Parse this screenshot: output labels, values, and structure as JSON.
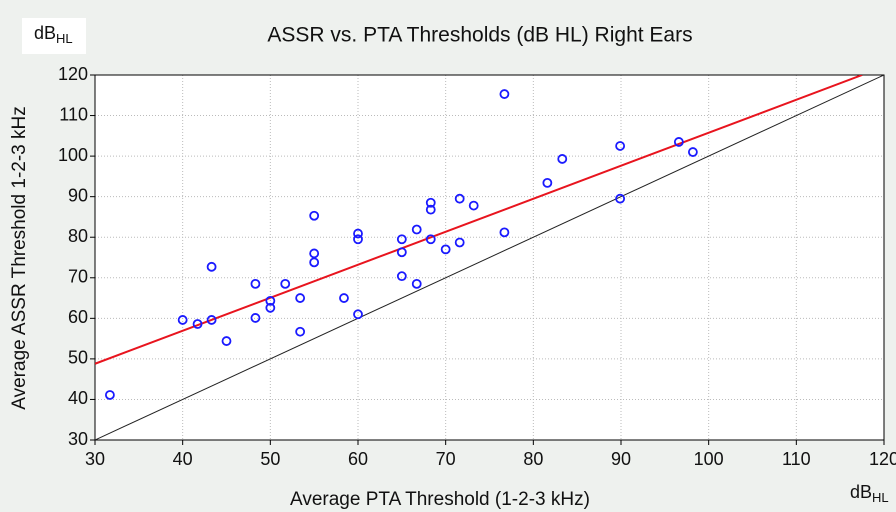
{
  "chart_data": {
    "type": "scatter",
    "title": "ASSR vs. PTA Thresholds (dB HL) Right Ears",
    "x_label": "Average PTA Threshold (1-2-3 kHz)",
    "y_label": "Average ASSR Threshold 1-2-3 kHz",
    "y_unit": {
      "base": "dB",
      "sub": "HL"
    },
    "x_unit": {
      "base": "dB",
      "sub": "HL"
    },
    "color": "#1a1aff",
    "x": [
      31.7,
      40,
      41.7,
      43.3,
      43.3,
      45,
      48.3,
      48.3,
      50,
      50,
      51.7,
      53.4,
      53.4,
      55,
      55,
      55,
      58.4,
      60,
      60,
      60,
      65,
      65,
      65,
      66.7,
      66.7,
      68.3,
      68.3,
      68.3,
      70,
      71.6,
      71.6,
      73.2,
      76.7,
      76.7,
      81.6,
      83.3,
      89.9,
      89.9,
      96.6,
      98.2
    ],
    "values": [
      41.1,
      59.6,
      58.6,
      59.6,
      72.7,
      54.4,
      68.5,
      60.1,
      64.3,
      62.6,
      68.5,
      65,
      56.7,
      85.3,
      76,
      73.8,
      65,
      80.9,
      79.5,
      61,
      79.5,
      76.3,
      70.4,
      81.9,
      68.5,
      88.5,
      86.8,
      79.5,
      77,
      89.5,
      78.7,
      87.8,
      115.3,
      81.2,
      93.4,
      99.3,
      102.5,
      89.5,
      103.5,
      101
    ],
    "fit_line": {
      "x": [
        30,
        117.5
      ],
      "y": [
        48.8,
        120
      ],
      "color": "#e8141e"
    },
    "identity_line": {
      "x": [
        30,
        120
      ],
      "y": [
        30,
        120
      ],
      "color": "#222222"
    },
    "xlim": [
      30,
      120
    ],
    "ylim": [
      30,
      120
    ],
    "xticks": [
      30,
      40,
      50,
      60,
      70,
      80,
      90,
      100,
      110,
      120
    ],
    "yticks": [
      30,
      40,
      50,
      60,
      70,
      80,
      90,
      100,
      110,
      120
    ],
    "grid": true
  }
}
